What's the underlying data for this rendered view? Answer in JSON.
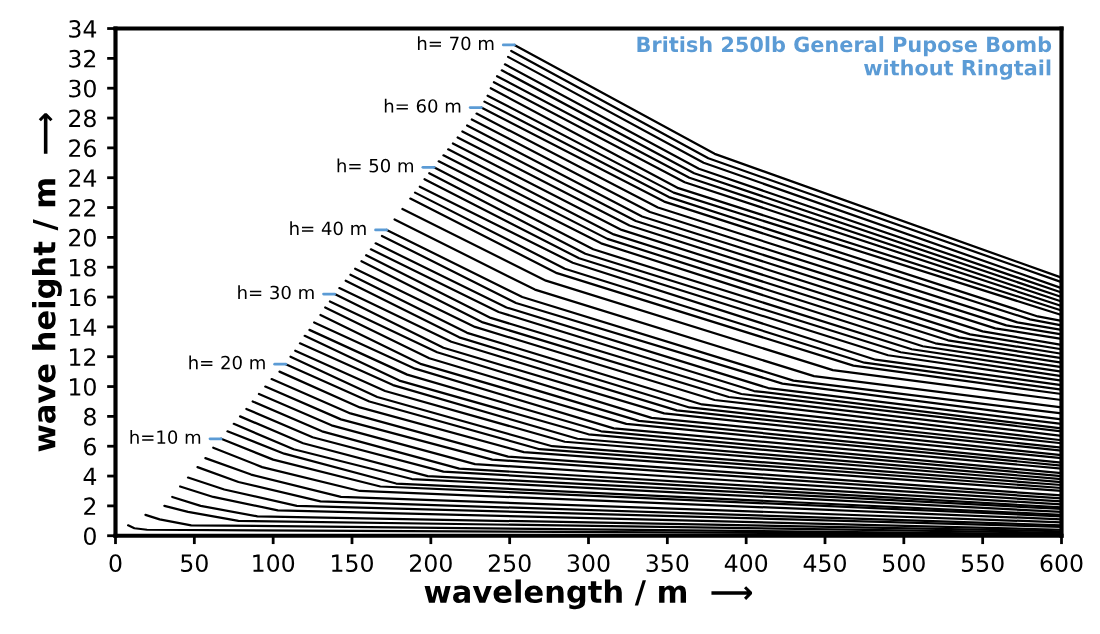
{
  "chart_data": {
    "type": "line",
    "title": "British 250lb General Pupose Bomb\nwithout Ringtail",
    "xlabel": "wavelength / m  ⟶",
    "ylabel": "wave height / m  ⟶",
    "xlim": [
      0,
      600
    ],
    "ylim": [
      0,
      34
    ],
    "xticks": [
      0,
      50,
      100,
      150,
      200,
      250,
      300,
      350,
      400,
      450,
      500,
      550,
      600
    ],
    "yticks": [
      0,
      2,
      4,
      6,
      8,
      10,
      12,
      14,
      16,
      18,
      20,
      22,
      24,
      26,
      28,
      30,
      32,
      34
    ],
    "grid": false,
    "legend": false,
    "marker": "none",
    "line_style": "solid",
    "annotations": [
      {
        "text": "h=10 m",
        "x": 67,
        "y": 6.5
      },
      {
        "text": "h= 20 m",
        "x": 108,
        "y": 11.5
      },
      {
        "text": "h= 30 m",
        "x": 139,
        "y": 16.2
      },
      {
        "text": "h= 40 m",
        "x": 172,
        "y": 20.5
      },
      {
        "text": "h= 50 m",
        "x": 202,
        "y": 24.7
      },
      {
        "text": "h= 60 m",
        "x": 232,
        "y": 28.7
      },
      {
        "text": "h= 70 m",
        "x": 253,
        "y": 32.9
      }
    ],
    "series": [
      {
        "color": "#000000",
        "x": [
          8,
          12,
          20,
          600
        ],
        "values": [
          0.7,
          0.5,
          0.4,
          0.1
        ]
      },
      {
        "color": "#000000",
        "x": [
          19,
          28,
          48,
          600
        ],
        "values": [
          1.4,
          1.1,
          0.7,
          0.1
        ]
      },
      {
        "color": "#000000",
        "x": [
          31,
          46,
          78,
          600
        ],
        "values": [
          2.0,
          1.6,
          1.0,
          0.2
        ]
      },
      {
        "color": "#000000",
        "x": [
          36,
          54,
          90,
          600
        ],
        "values": [
          2.6,
          2.0,
          1.3,
          0.3
        ]
      },
      {
        "color": "#000000",
        "x": [
          41,
          62,
          103,
          600
        ],
        "values": [
          3.3,
          2.6,
          1.7,
          0.4
        ]
      },
      {
        "color": "#000000",
        "x": [
          46,
          69,
          115,
          600
        ],
        "values": [
          3.9,
          3.1,
          2.0,
          0.6
        ]
      },
      {
        "color": "#000000",
        "x": [
          52,
          78,
          130,
          600
        ],
        "values": [
          4.6,
          3.6,
          2.3,
          0.7
        ]
      },
      {
        "color": "#000000",
        "x": [
          57,
          86,
          143,
          600
        ],
        "values": [
          5.2,
          4.1,
          2.6,
          0.9
        ]
      },
      {
        "color": "#000000",
        "x": [
          62,
          93,
          155,
          600
        ],
        "values": [
          5.9,
          4.6,
          3.0,
          1.1
        ]
      },
      {
        "color": "#000000",
        "x": [
          67,
          100,
          168,
          600
        ],
        "values": [
          6.5,
          5.1,
          3.3,
          1.3
        ]
      },
      {
        "color": "#000000",
        "x": [
          71,
          107,
          178,
          600
        ],
        "values": [
          7.0,
          5.5,
          3.5,
          1.4
        ]
      },
      {
        "color": "#000000",
        "x": [
          75,
          113,
          188,
          600
        ],
        "values": [
          7.5,
          5.8,
          3.8,
          1.6
        ]
      },
      {
        "color": "#000000",
        "x": [
          79,
          119,
          198,
          600
        ],
        "values": [
          8.0,
          6.2,
          4.0,
          1.8
        ]
      },
      {
        "color": "#000000",
        "x": [
          83,
          125,
          208,
          600
        ],
        "values": [
          8.5,
          6.6,
          4.3,
          1.9
        ]
      },
      {
        "color": "#000000",
        "x": [
          87,
          131,
          218,
          600
        ],
        "values": [
          9.0,
          7.0,
          4.5,
          2.1
        ]
      },
      {
        "color": "#000000",
        "x": [
          91,
          137,
          228,
          600
        ],
        "values": [
          9.5,
          7.4,
          4.8,
          2.3
        ]
      },
      {
        "color": "#000000",
        "x": [
          95,
          143,
          239,
          600
        ],
        "values": [
          10.0,
          7.8,
          5.1,
          2.5
        ]
      },
      {
        "color": "#000000",
        "x": [
          99,
          149,
          249,
          600
        ],
        "values": [
          10.5,
          8.2,
          5.3,
          2.7
        ]
      },
      {
        "color": "#000000",
        "x": [
          104,
          155,
          259,
          600
        ],
        "values": [
          11.0,
          8.6,
          5.6,
          3.0
        ]
      },
      {
        "color": "#000000",
        "x": [
          108,
          161,
          269,
          600
        ],
        "values": [
          11.5,
          9.0,
          5.8,
          3.2
        ]
      },
      {
        "color": "#000000",
        "x": [
          111,
          166,
          277,
          600
        ],
        "values": [
          12.0,
          9.3,
          6.0,
          3.4
        ]
      },
      {
        "color": "#000000",
        "x": [
          114,
          171,
          285,
          600
        ],
        "values": [
          12.4,
          9.7,
          6.3,
          3.6
        ]
      },
      {
        "color": "#000000",
        "x": [
          117,
          176,
          293,
          600
        ],
        "values": [
          12.9,
          10.1,
          6.5,
          3.8
        ]
      },
      {
        "color": "#000000",
        "x": [
          120,
          180,
          300,
          600
        ],
        "values": [
          13.4,
          10.4,
          6.8,
          4.0
        ]
      },
      {
        "color": "#000000",
        "x": [
          123,
          185,
          308,
          600
        ],
        "values": [
          13.8,
          10.8,
          7.0,
          4.2
        ]
      },
      {
        "color": "#000000",
        "x": [
          126,
          190,
          316,
          600
        ],
        "values": [
          14.3,
          11.2,
          7.2,
          4.5
        ]
      },
      {
        "color": "#000000",
        "x": [
          130,
          194,
          324,
          600
        ],
        "values": [
          14.8,
          11.5,
          7.5,
          4.7
        ]
      },
      {
        "color": "#000000",
        "x": [
          133,
          199,
          332,
          600
        ],
        "values": [
          15.3,
          11.9,
          7.7,
          4.9
        ]
      },
      {
        "color": "#000000",
        "x": [
          136,
          204,
          340,
          600
        ],
        "values": [
          15.7,
          12.3,
          7.9,
          5.2
        ]
      },
      {
        "color": "#000000",
        "x": [
          139,
          208,
          348,
          600
        ],
        "values": [
          16.2,
          12.6,
          8.2,
          5.4
        ]
      },
      {
        "color": "#000000",
        "x": [
          142,
          213,
          356,
          600
        ],
        "values": [
          16.6,
          13.0,
          8.4,
          5.7
        ]
      },
      {
        "color": "#000000",
        "x": [
          146,
          218,
          364,
          600
        ],
        "values": [
          17.1,
          13.3,
          8.6,
          5.9
        ]
      },
      {
        "color": "#000000",
        "x": [
          149,
          223,
          372,
          600
        ],
        "values": [
          17.5,
          13.6,
          8.8,
          6.2
        ]
      },
      {
        "color": "#000000",
        "x": [
          152,
          228,
          380,
          600
        ],
        "values": [
          17.9,
          14.0,
          9.1,
          6.4
        ]
      },
      {
        "color": "#000000",
        "x": [
          156,
          233,
          389,
          600
        ],
        "values": [
          18.4,
          14.3,
          9.3,
          6.7
        ]
      },
      {
        "color": "#000000",
        "x": [
          159,
          238,
          397,
          600
        ],
        "values": [
          18.8,
          14.6,
          9.5,
          7.0
        ]
      },
      {
        "color": "#000000",
        "x": [
          162,
          243,
          405,
          600
        ],
        "values": [
          19.2,
          15.0,
          9.7,
          7.2
        ]
      },
      {
        "color": "#000000",
        "x": [
          165,
          248,
          414,
          600
        ],
        "values": [
          19.6,
          15.3,
          9.9,
          7.5
        ]
      },
      {
        "color": "#000000",
        "x": [
          169,
          254,
          423,
          600
        ],
        "values": [
          20.1,
          15.6,
          10.2,
          7.8
        ]
      },
      {
        "color": "#000000",
        "x": [
          172,
          258,
          430,
          600
        ],
        "values": [
          20.5,
          16.0,
          10.4,
          8.2
        ]
      },
      {
        "color": "#000000",
        "x": [
          177,
          266,
          443,
          600
        ],
        "values": [
          21.2,
          16.5,
          10.7,
          8.6
        ]
      },
      {
        "color": "#000000",
        "x": [
          182,
          273,
          455,
          600
        ],
        "values": [
          21.9,
          17.1,
          11.1,
          9.1
        ]
      },
      {
        "color": "#000000",
        "x": [
          187,
          280,
          468,
          600
        ],
        "values": [
          22.6,
          17.6,
          11.4,
          9.5
        ]
      },
      {
        "color": "#000000",
        "x": [
          190,
          285,
          475,
          600
        ],
        "values": [
          23.0,
          17.9,
          11.6,
          9.8
        ]
      },
      {
        "color": "#000000",
        "x": [
          193,
          290,
          482,
          600
        ],
        "values": [
          23.4,
          18.3,
          11.8,
          10.1
        ]
      },
      {
        "color": "#000000",
        "x": [
          196,
          294,
          490,
          600
        ],
        "values": [
          23.9,
          18.6,
          12.1,
          10.4
        ]
      },
      {
        "color": "#000000",
        "x": [
          199,
          298,
          498,
          600
        ],
        "values": [
          24.3,
          18.9,
          12.3,
          10.7
        ]
      },
      {
        "color": "#000000",
        "x": [
          202,
          303,
          505,
          600
        ],
        "values": [
          24.7,
          19.2,
          12.5,
          11.0
        ]
      },
      {
        "color": "#000000",
        "x": [
          205,
          308,
          512,
          600
        ],
        "values": [
          25.1,
          19.6,
          12.7,
          11.3
        ]
      },
      {
        "color": "#000000",
        "x": [
          208,
          312,
          520,
          600
        ],
        "values": [
          25.5,
          19.9,
          12.9,
          11.6
        ]
      },
      {
        "color": "#000000",
        "x": [
          211,
          316,
          528,
          600
        ],
        "values": [
          25.9,
          20.2,
          13.1,
          11.9
        ]
      },
      {
        "color": "#000000",
        "x": [
          214,
          321,
          535,
          600
        ],
        "values": [
          26.3,
          20.5,
          13.3,
          12.2
        ]
      },
      {
        "color": "#000000",
        "x": [
          217,
          326,
          542,
          600
        ],
        "values": [
          26.7,
          20.8,
          13.5,
          12.5
        ]
      },
      {
        "color": "#000000",
        "x": [
          220,
          330,
          550,
          600
        ],
        "values": [
          27.1,
          21.1,
          13.7,
          12.8
        ]
      },
      {
        "color": "#000000",
        "x": [
          223,
          334,
          558,
          600
        ],
        "values": [
          27.5,
          21.4,
          13.9,
          13.2
        ]
      },
      {
        "color": "#000000",
        "x": [
          226,
          339,
          565,
          600
        ],
        "values": [
          27.9,
          21.7,
          14.1,
          13.5
        ]
      },
      {
        "color": "#000000",
        "x": [
          229,
          344,
          572,
          600
        ],
        "values": [
          28.3,
          22.0,
          14.3,
          13.8
        ]
      },
      {
        "color": "#000000",
        "x": [
          232,
          348,
          580,
          600
        ],
        "values": [
          28.7,
          22.4,
          14.5,
          14.1
        ]
      },
      {
        "color": "#000000",
        "x": [
          234,
          351,
          585,
          600
        ],
        "values": [
          29.1,
          22.7,
          14.7,
          14.4
        ]
      },
      {
        "color": "#000000",
        "x": [
          236,
          354,
          600
        ],
        "values": [
          29.5,
          23.0,
          14.8
        ]
      },
      {
        "color": "#000000",
        "x": [
          238,
          357,
          600
        ],
        "values": [
          30.0,
          23.3,
          15.1
        ]
      },
      {
        "color": "#000000",
        "x": [
          240,
          361,
          600
        ],
        "values": [
          30.4,
          23.7,
          15.4
        ]
      },
      {
        "color": "#000000",
        "x": [
          242,
          364,
          600
        ],
        "values": [
          30.8,
          24.0,
          15.7
        ]
      },
      {
        "color": "#000000",
        "x": [
          245,
          367,
          600
        ],
        "values": [
          31.2,
          24.3,
          16.0
        ]
      },
      {
        "color": "#000000",
        "x": [
          247,
          370,
          600
        ],
        "values": [
          31.6,
          24.6,
          16.3
        ]
      },
      {
        "color": "#000000",
        "x": [
          249,
          373,
          600
        ],
        "values": [
          32.1,
          25.0,
          16.6
        ]
      },
      {
        "color": "#000000",
        "x": [
          251,
          376,
          600
        ],
        "values": [
          32.5,
          25.3,
          17.0
        ]
      },
      {
        "color": "#000000",
        "x": [
          253,
          380,
          600
        ],
        "values": [
          32.9,
          25.6,
          17.3
        ]
      }
    ]
  }
}
